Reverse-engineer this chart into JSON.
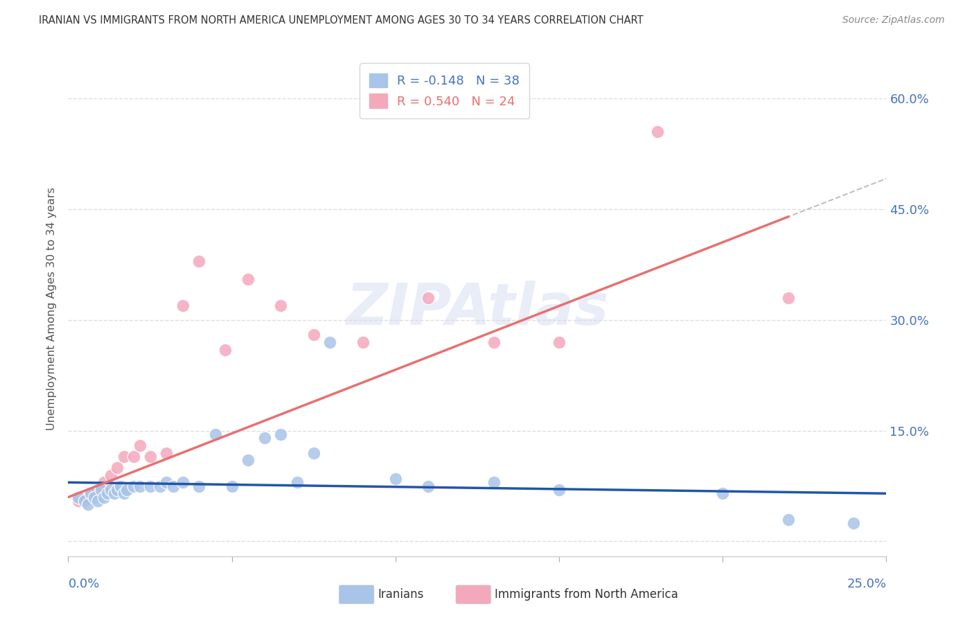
{
  "title": "IRANIAN VS IMMIGRANTS FROM NORTH AMERICA UNEMPLOYMENT AMONG AGES 30 TO 34 YEARS CORRELATION CHART",
  "source": "Source: ZipAtlas.com",
  "ylabel": "Unemployment Among Ages 30 to 34 years",
  "yticks": [
    0.0,
    0.15,
    0.3,
    0.45,
    0.6
  ],
  "ytick_labels": [
    "",
    "15.0%",
    "30.0%",
    "45.0%",
    "60.0%"
  ],
  "xlim": [
    0.0,
    0.25
  ],
  "ylim": [
    -0.02,
    0.65
  ],
  "legend_r1": "-0.148",
  "legend_n1": "38",
  "legend_r2": "0.540",
  "legend_n2": "24",
  "watermark": "ZIPAtlas",
  "iranians_color": "#a8c4e8",
  "immigrants_color": "#f4a8bc",
  "trendline_iranians_color": "#2255aa",
  "trendline_immigrants_color": "#e87070",
  "iranians_x": [
    0.003,
    0.005,
    0.006,
    0.007,
    0.008,
    0.009,
    0.01,
    0.011,
    0.012,
    0.013,
    0.014,
    0.015,
    0.016,
    0.017,
    0.018,
    0.02,
    0.022,
    0.025,
    0.028,
    0.03,
    0.032,
    0.035,
    0.04,
    0.045,
    0.05,
    0.055,
    0.06,
    0.065,
    0.07,
    0.075,
    0.08,
    0.1,
    0.11,
    0.13,
    0.15,
    0.2,
    0.22,
    0.24
  ],
  "iranians_y": [
    0.06,
    0.055,
    0.05,
    0.065,
    0.06,
    0.055,
    0.07,
    0.06,
    0.065,
    0.07,
    0.065,
    0.07,
    0.075,
    0.065,
    0.07,
    0.075,
    0.075,
    0.075,
    0.075,
    0.08,
    0.075,
    0.08,
    0.075,
    0.145,
    0.075,
    0.11,
    0.14,
    0.145,
    0.08,
    0.12,
    0.27,
    0.085,
    0.075,
    0.08,
    0.07,
    0.065,
    0.03,
    0.025
  ],
  "immigrants_x": [
    0.003,
    0.005,
    0.007,
    0.009,
    0.011,
    0.013,
    0.015,
    0.017,
    0.02,
    0.022,
    0.025,
    0.03,
    0.035,
    0.04,
    0.048,
    0.055,
    0.065,
    0.075,
    0.09,
    0.11,
    0.13,
    0.15,
    0.18,
    0.22
  ],
  "immigrants_y": [
    0.055,
    0.06,
    0.065,
    0.07,
    0.08,
    0.09,
    0.1,
    0.115,
    0.115,
    0.13,
    0.115,
    0.12,
    0.32,
    0.38,
    0.26,
    0.355,
    0.32,
    0.28,
    0.27,
    0.33,
    0.27,
    0.27,
    0.555,
    0.33
  ],
  "background_color": "#ffffff",
  "grid_color": "#dddddd",
  "axis_label_color": "#4472c4",
  "title_color": "#333333",
  "trendline_slope_iranians": -0.148,
  "trendline_intercept_iranians": 0.078,
  "trendline_slope_immigrants": 1.72,
  "trendline_intercept_immigrants": 0.055
}
